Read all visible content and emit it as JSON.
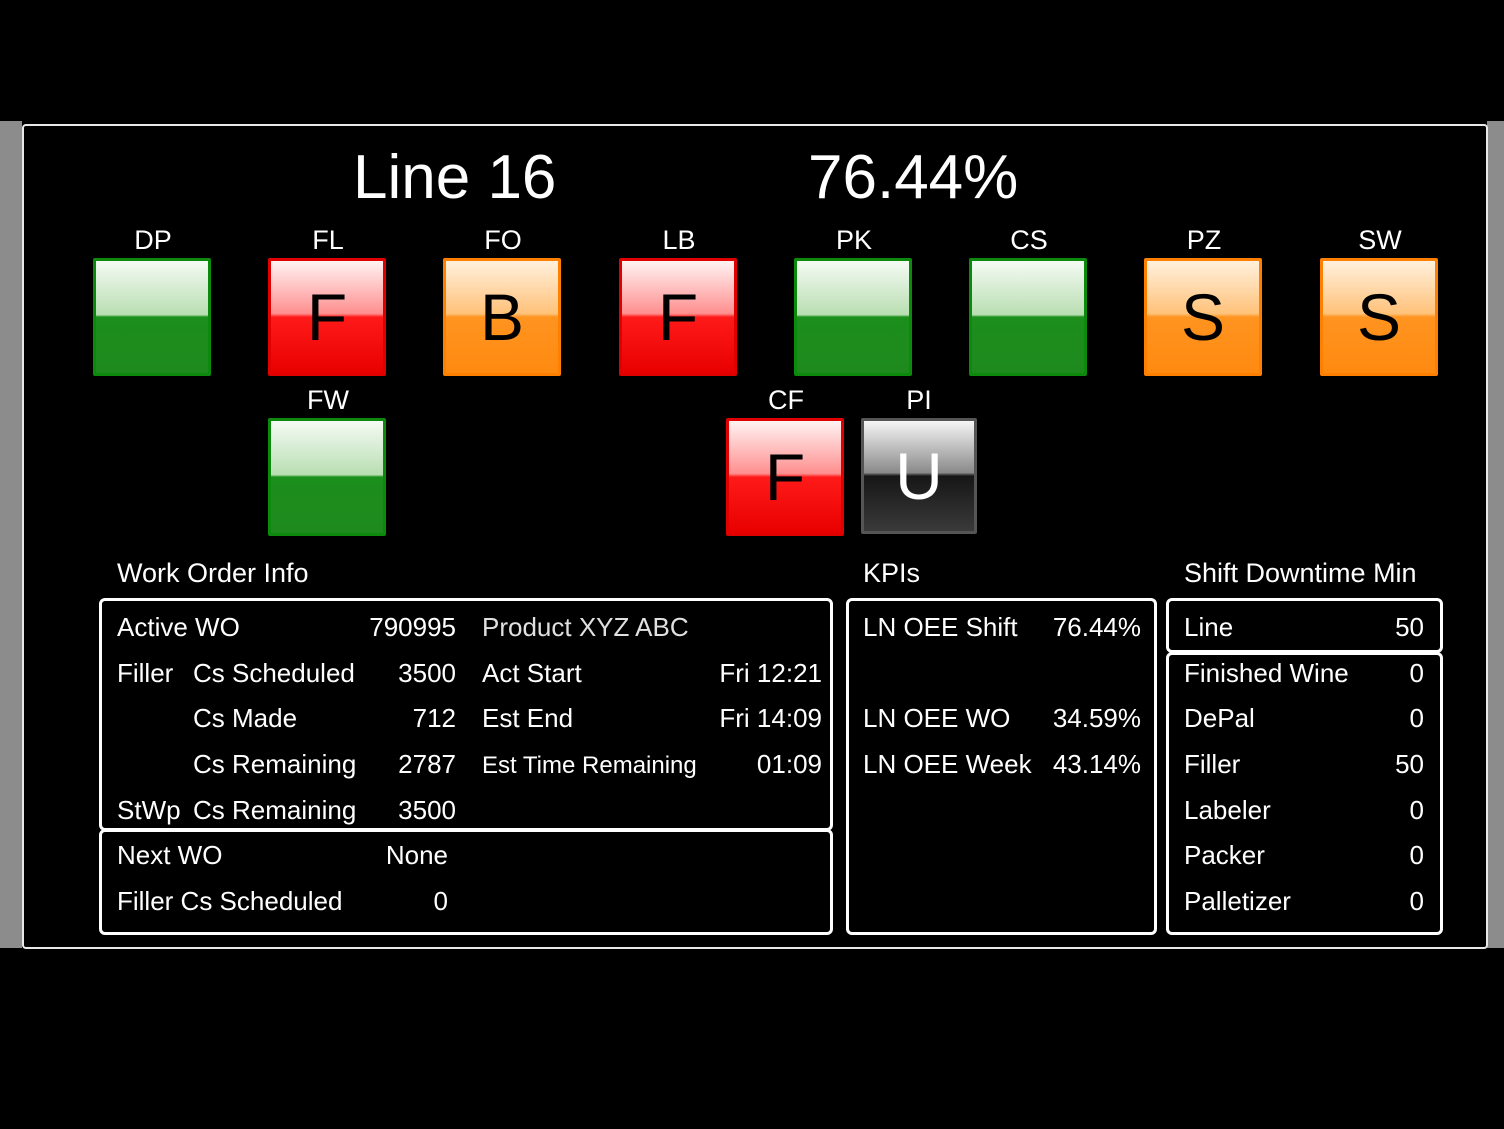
{
  "header": {
    "line_name": "Line 16",
    "oee_percent": "76.44%"
  },
  "stations_row1": [
    {
      "code": "DP",
      "letter": "",
      "status": "green"
    },
    {
      "code": "FL",
      "letter": "F",
      "status": "red"
    },
    {
      "code": "FO",
      "letter": "B",
      "status": "orange"
    },
    {
      "code": "LB",
      "letter": "F",
      "status": "red"
    },
    {
      "code": "PK",
      "letter": "",
      "status": "green"
    },
    {
      "code": "CS",
      "letter": "",
      "status": "green"
    },
    {
      "code": "PZ",
      "letter": "S",
      "status": "orange"
    },
    {
      "code": "SW",
      "letter": "S",
      "status": "orange"
    }
  ],
  "stations_row2": [
    {
      "code": "FW",
      "letter": "",
      "status": "green"
    },
    {
      "code": "CF",
      "letter": "F",
      "status": "red"
    },
    {
      "code": "PI",
      "letter": "U",
      "status": "gray"
    }
  ],
  "status_colors": {
    "green": "#1e8a1e",
    "red": "#ff1a1a",
    "orange": "#ff8a10",
    "gray": "#3a3a3a"
  },
  "work_order": {
    "heading": "Work Order Info",
    "active_label": "Active WO",
    "active_value": "790995",
    "product": "Product XYZ ABC",
    "filler_label": "Filler",
    "stwp_label": "StWp",
    "rows": [
      {
        "label": "Cs Scheduled",
        "value": "3500"
      },
      {
        "label": "Cs Made",
        "value": "712"
      },
      {
        "label": "Cs Remaining",
        "value": "2787"
      },
      {
        "label": "Cs Remaining",
        "value": "3500"
      }
    ],
    "times": [
      {
        "label": "Act Start",
        "value": "Fri 12:21"
      },
      {
        "label": "Est End",
        "value": "Fri 14:09"
      },
      {
        "label": "Est Time Remaining",
        "value": "01:09"
      }
    ],
    "next_label": "Next WO",
    "next_value": "None",
    "next_filler_label": "Filler Cs Scheduled",
    "next_filler_value": "0"
  },
  "kpis": {
    "heading": "KPIs",
    "items": [
      {
        "label": "LN OEE Shift",
        "value": "76.44%"
      },
      {
        "label": "LN OEE WO",
        "value": "34.59%"
      },
      {
        "label": "LN OEE Week",
        "value": "43.14%"
      }
    ]
  },
  "downtime": {
    "heading": "Shift Downtime Min",
    "line_label": "Line",
    "line_value": "50",
    "items": [
      {
        "label": "Finished Wine",
        "value": "0"
      },
      {
        "label": "DePal",
        "value": "0"
      },
      {
        "label": "Filler",
        "value": "50"
      },
      {
        "label": "Labeler",
        "value": "0"
      },
      {
        "label": "Packer",
        "value": "0"
      },
      {
        "label": "Palletizer",
        "value": "0"
      }
    ]
  }
}
